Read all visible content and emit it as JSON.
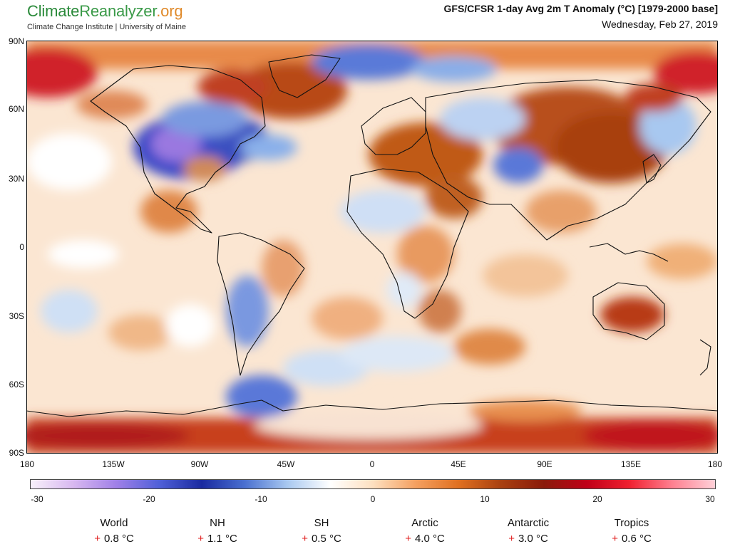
{
  "header": {
    "brand_part1": "Climate",
    "brand_part2": "Reanalyzer",
    "brand_part3": ".org",
    "subtitle": "Climate Change Institute | University of Maine",
    "title": "GFS/CFSR 1-day Avg 2m T Anomaly (°C) [1979-2000 base]",
    "date": "Wednesday, Feb 27, 2019"
  },
  "axes": {
    "lat_labels": [
      "90N",
      "60N",
      "30N",
      "0",
      "30S",
      "60S",
      "90S"
    ],
    "lon_labels": [
      "180",
      "135W",
      "90W",
      "45W",
      "0",
      "45E",
      "90E",
      "135E",
      "180"
    ]
  },
  "colorbar": {
    "tick_labels": [
      "-30",
      "-20",
      "-10",
      "0",
      "10",
      "20",
      "30"
    ],
    "colors": [
      "#f8f0fa",
      "#d8b8f0",
      "#a080e8",
      "#5060d8",
      "#1a2aa0",
      "#4a70d0",
      "#a8c8f0",
      "#ffffff",
      "#fde0c0",
      "#f5a060",
      "#e07020",
      "#a84010",
      "#8a1a0a",
      "#c00018",
      "#f02030",
      "#ff8090",
      "#ffd0d8"
    ]
  },
  "stats": [
    {
      "name": "World",
      "sign": "+",
      "value": "0.8 °C"
    },
    {
      "name": "NH",
      "sign": "+",
      "value": "1.1 °C"
    },
    {
      "name": "SH",
      "sign": "+",
      "value": "0.5 °C"
    },
    {
      "name": "Arctic",
      "sign": "+",
      "value": "4.0 °C"
    },
    {
      "name": "Antarctic",
      "sign": "+",
      "value": "3.0 °C"
    },
    {
      "name": "Tropics",
      "sign": "+",
      "value": "0.6 °C"
    }
  ]
}
